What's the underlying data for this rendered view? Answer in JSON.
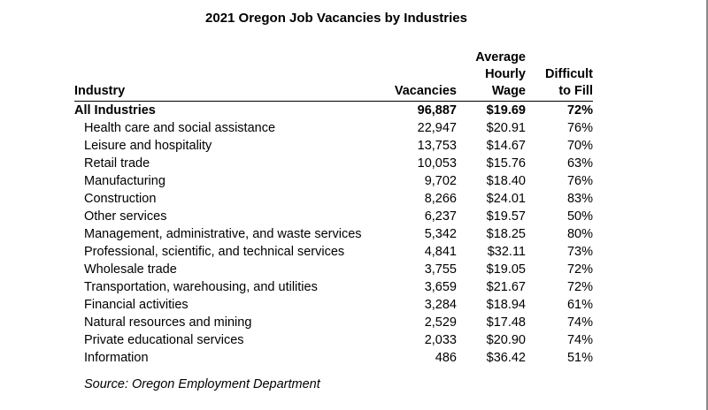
{
  "title": "2021 Oregon Job Vacancies by Industries",
  "headers": {
    "industry": "Industry",
    "vacancies": "Vacancies",
    "wage": [
      "Average",
      "Hourly",
      "Wage"
    ],
    "difficult": [
      "Difficult",
      "to Fill"
    ]
  },
  "total": {
    "industry": "All Industries",
    "vacancies": "96,887",
    "wage": "$19.69",
    "difficult": "72%"
  },
  "rows": [
    {
      "industry": "Health care and social assistance",
      "vacancies": "22,947",
      "wage": "$20.91",
      "difficult": "76%"
    },
    {
      "industry": "Leisure and hospitality",
      "vacancies": "13,753",
      "wage": "$14.67",
      "difficult": "70%"
    },
    {
      "industry": "Retail trade",
      "vacancies": "10,053",
      "wage": "$15.76",
      "difficult": "63%"
    },
    {
      "industry": "Manufacturing",
      "vacancies": "9,702",
      "wage": "$18.40",
      "difficult": "76%"
    },
    {
      "industry": "Construction",
      "vacancies": "8,266",
      "wage": "$24.01",
      "difficult": "83%"
    },
    {
      "industry": "Other services",
      "vacancies": "6,237",
      "wage": "$19.57",
      "difficult": "50%"
    },
    {
      "industry": "Management, administrative, and waste services",
      "vacancies": "5,342",
      "wage": "$18.25",
      "difficult": "80%"
    },
    {
      "industry": "Professional, scientific, and technical services",
      "vacancies": "4,841",
      "wage": "$32.11",
      "difficult": "73%"
    },
    {
      "industry": "Wholesale trade",
      "vacancies": "3,755",
      "wage": "$19.05",
      "difficult": "72%"
    },
    {
      "industry": "Transportation, warehousing, and utilities",
      "vacancies": "3,659",
      "wage": "$21.67",
      "difficult": "72%"
    },
    {
      "industry": "Financial activities",
      "vacancies": "3,284",
      "wage": "$18.94",
      "difficult": "61%"
    },
    {
      "industry": "Natural resources and mining",
      "vacancies": "2,529",
      "wage": "$17.48",
      "difficult": "74%"
    },
    {
      "industry": "Private educational services",
      "vacancies": "2,033",
      "wage": "$20.90",
      "difficult": "74%"
    },
    {
      "industry": "Information",
      "vacancies": "486",
      "wage": "$36.42",
      "difficult": "51%"
    }
  ],
  "source": "Source: Oregon Employment Department"
}
